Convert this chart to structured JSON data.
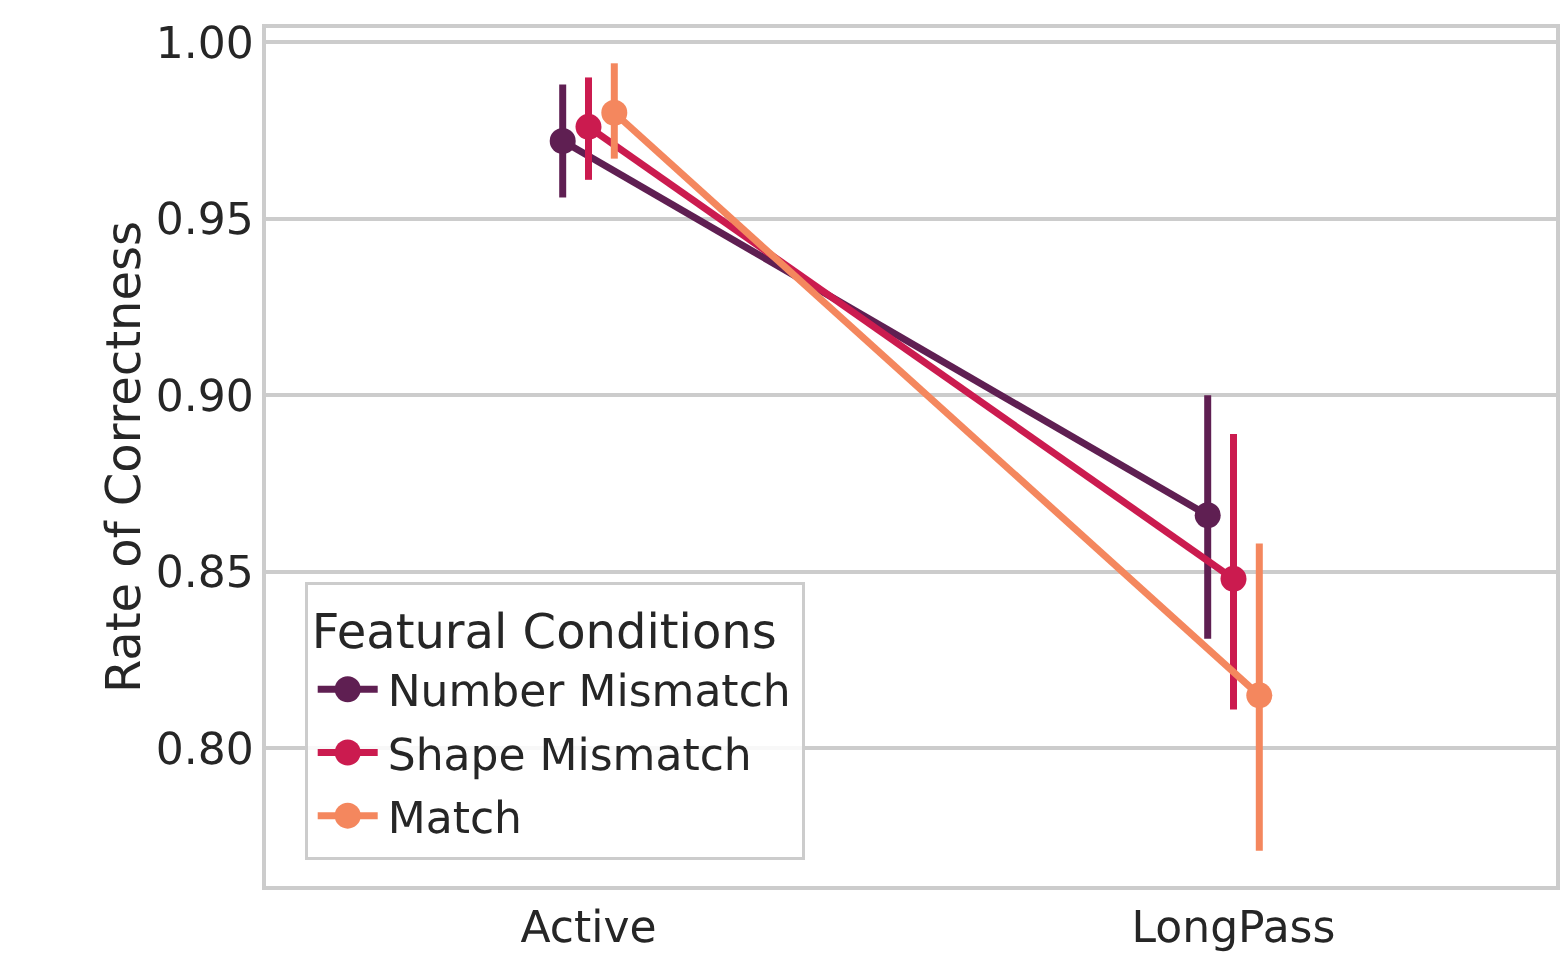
{
  "chart_data": {
    "type": "line",
    "ylabel": "Rate of Correctness",
    "legend_title": "Featural Conditions",
    "categories": [
      "Active",
      "LongPass"
    ],
    "series": [
      {
        "name": "Number Mismatch",
        "color": "#5f1f52",
        "values": [
          0.972,
          0.866
        ],
        "errors": [
          [
            0.956,
            0.988
          ],
          [
            0.831,
            0.9
          ]
        ]
      },
      {
        "name": "Shape Mismatch",
        "color": "#cb1b4f",
        "values": [
          0.976,
          0.848
        ],
        "errors": [
          [
            0.961,
            0.99
          ],
          [
            0.811,
            0.889
          ]
        ]
      },
      {
        "name": "Match",
        "color": "#f4875e",
        "values": [
          0.98,
          0.815
        ],
        "errors": [
          [
            0.967,
            0.994
          ],
          [
            0.771,
            0.858
          ]
        ]
      }
    ],
    "ylim": [
      0.761,
      1.004
    ],
    "yticks": [
      {
        "value": 0.8,
        "label": "0.80"
      },
      {
        "value": 0.85,
        "label": "0.85"
      },
      {
        "value": 0.9,
        "label": "0.90"
      },
      {
        "value": 0.95,
        "label": "0.95"
      },
      {
        "value": 1.0,
        "label": "1.00"
      }
    ],
    "grid": "y",
    "legend": "bottom left",
    "marker": "circle",
    "line_style": "solid"
  }
}
